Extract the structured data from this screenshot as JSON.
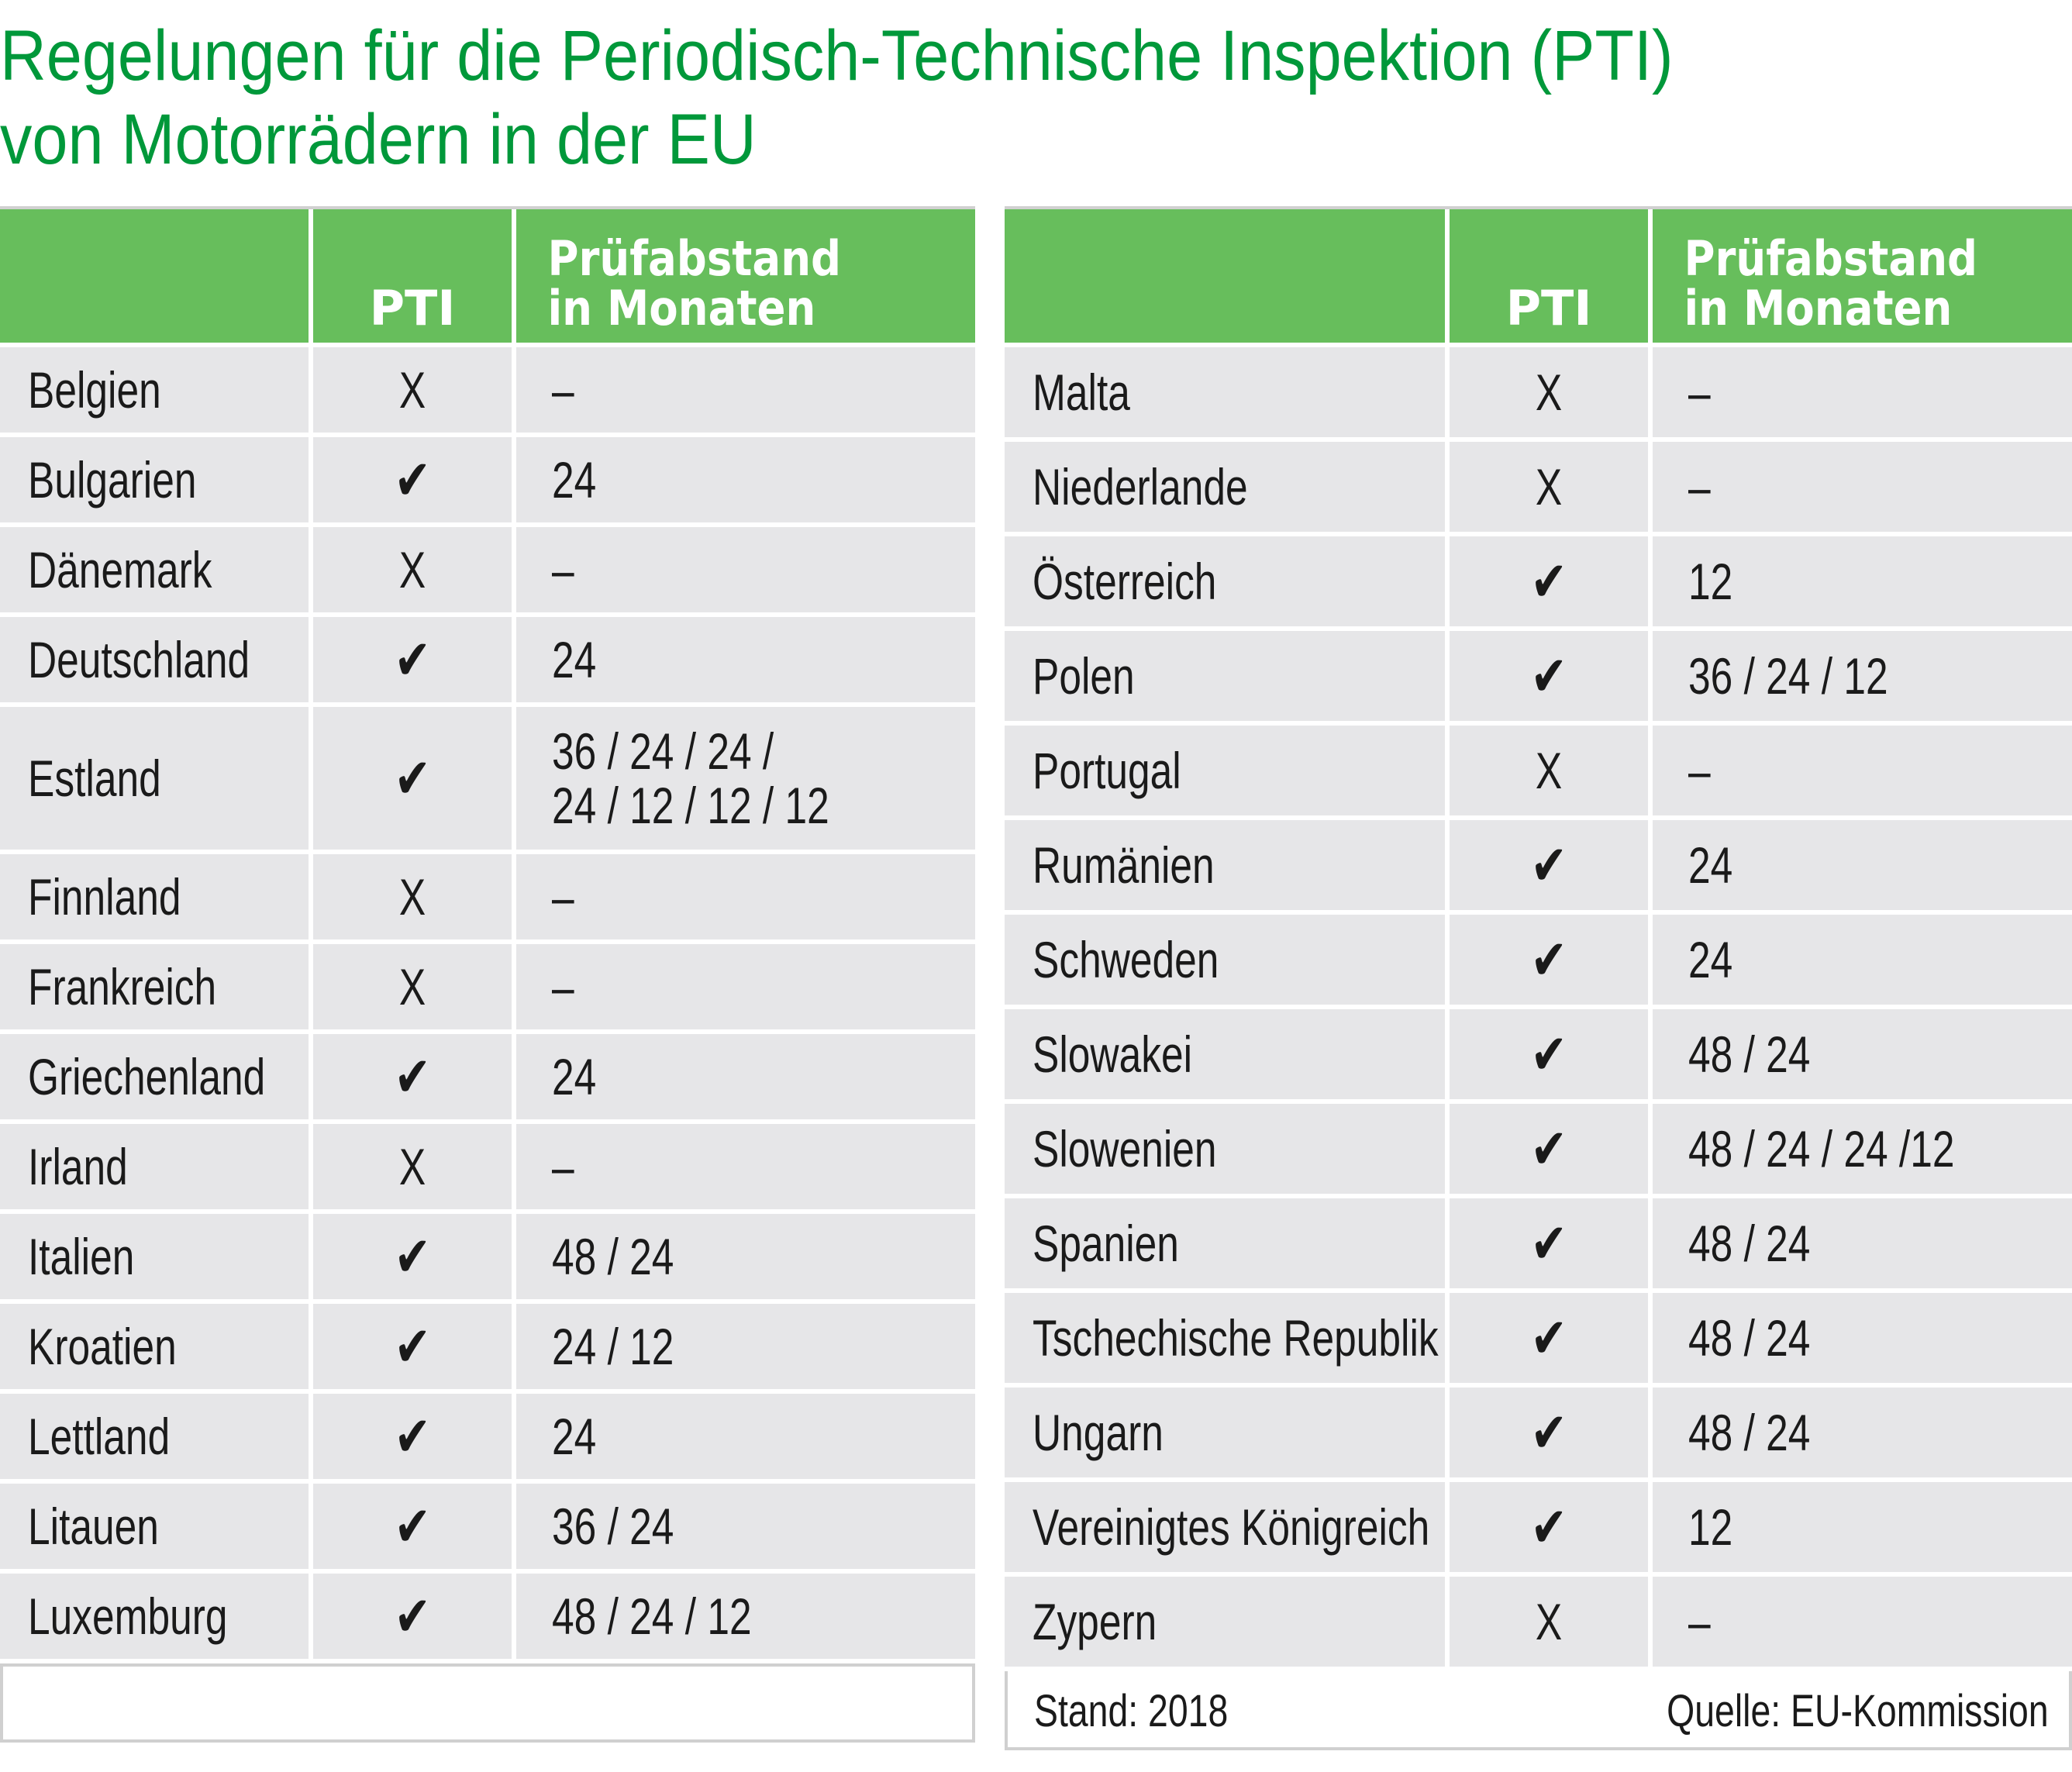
{
  "title": {
    "line1": "Regelungen für die Periodisch-Technische Inspektion (PTI)",
    "line2": "von Motorrädern in der EU"
  },
  "header": {
    "country": "",
    "pti": "PTI",
    "interval": "Prüfabstand\nin Monaten"
  },
  "colors": {
    "title": "#00983a",
    "header_bg": "#67be5c",
    "row_bg": "#e6e6e8"
  },
  "left_rows": [
    {
      "country": "Belgien",
      "pti": "X",
      "interval": "–"
    },
    {
      "country": "Bulgarien",
      "pti": "✔",
      "interval": "24"
    },
    {
      "country": "Dänemark",
      "pti": "X",
      "interval": "–"
    },
    {
      "country": "Deutschland",
      "pti": "✔",
      "interval": "24"
    },
    {
      "country": "Estland",
      "pti": "✔",
      "interval": "36 / 24 / 24 /\n24 / 12 / 12 / 12"
    },
    {
      "country": "Finnland",
      "pti": "X",
      "interval": "–"
    },
    {
      "country": "Frankreich",
      "pti": "X",
      "interval": "–"
    },
    {
      "country": "Griechenland",
      "pti": "✔",
      "interval": "24"
    },
    {
      "country": "Irland",
      "pti": "X",
      "interval": "–"
    },
    {
      "country": "Italien",
      "pti": "✔",
      "interval": "48 / 24"
    },
    {
      "country": "Kroatien",
      "pti": "✔",
      "interval": "24 / 12"
    },
    {
      "country": "Lettland",
      "pti": "✔",
      "interval": "24"
    },
    {
      "country": "Litauen",
      "pti": "✔",
      "interval": "36 / 24"
    },
    {
      "country": "Luxemburg",
      "pti": "✔",
      "interval": "48 / 24 / 12"
    }
  ],
  "right_rows": [
    {
      "country": "Malta",
      "pti": "X",
      "interval": "–"
    },
    {
      "country": "Niederlande",
      "pti": "X",
      "interval": "–"
    },
    {
      "country": "Österreich",
      "pti": "✔",
      "interval": "12"
    },
    {
      "country": "Polen",
      "pti": "✔",
      "interval": "36 / 24 / 12"
    },
    {
      "country": "Portugal",
      "pti": "X",
      "interval": "–"
    },
    {
      "country": "Rumänien",
      "pti": "✔",
      "interval": "24"
    },
    {
      "country": "Schweden",
      "pti": "✔",
      "interval": "24"
    },
    {
      "country": "Slowakei",
      "pti": "✔",
      "interval": "48 / 24"
    },
    {
      "country": "Slowenien",
      "pti": "✔",
      "interval": "48 / 24 / 24 /12"
    },
    {
      "country": "Spanien",
      "pti": "✔",
      "interval": "48 / 24"
    },
    {
      "country": "Tschechische Republik",
      "pti": "✔",
      "interval": "48 / 24"
    },
    {
      "country": "Ungarn",
      "pti": "✔",
      "interval": "48 / 24"
    },
    {
      "country": "Vereinigtes Königreich",
      "pti": "✔",
      "interval": "12"
    },
    {
      "country": "Zypern",
      "pti": "X",
      "interval": "–"
    }
  ],
  "footer": {
    "stand": "Stand: 2018",
    "quelle": "Quelle: EU-Kommission"
  }
}
